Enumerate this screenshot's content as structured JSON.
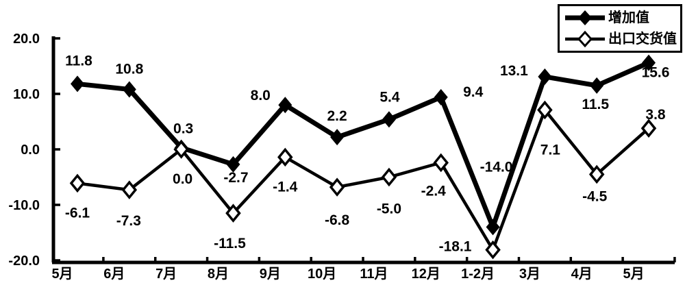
{
  "colors": {
    "foreground": "#000000",
    "background": "#ffffff"
  },
  "legend": {
    "items": [
      {
        "label": "增加值",
        "marker": "filled-diamond",
        "line": "thick"
      },
      {
        "label": "出口交货值",
        "marker": "hollow-diamond",
        "line": "thin"
      }
    ]
  },
  "chart_data": {
    "type": "line",
    "title": "",
    "xlabel": "",
    "ylabel": "",
    "grid": false,
    "legend_position": "top-right",
    "categories": [
      "5月",
      "6月",
      "7月",
      "8月",
      "9月",
      "10月",
      "11月",
      "12月",
      "1-2月",
      "3月",
      "4月",
      "5月"
    ],
    "ylim": [
      -20,
      20
    ],
    "yticks": [
      {
        "value": 20,
        "label": "20.0"
      },
      {
        "value": 10,
        "label": "10.0"
      },
      {
        "value": 0,
        "label": "0.0"
      },
      {
        "value": -10,
        "label": "-10.0"
      },
      {
        "value": -20,
        "label": "-20.0"
      }
    ],
    "series": [
      {
        "name": "增加值",
        "marker": "filled-diamond",
        "line_width": 7,
        "values": [
          11.8,
          10.8,
          0.3,
          -2.7,
          8.0,
          2.2,
          5.4,
          9.4,
          -14.0,
          13.1,
          11.5,
          15.6
        ],
        "labels": [
          "11.8",
          "10.8",
          "0.3",
          "-2.7",
          "8.0",
          "2.2",
          "5.4",
          "9.4",
          "-14.0",
          "13.1",
          "11.5",
          "15.6"
        ],
        "label_offsets": [
          [
            2,
            -34
          ],
          [
            0,
            -30
          ],
          [
            3,
            -28
          ],
          [
            4,
            19
          ],
          [
            -36,
            -14
          ],
          [
            0,
            -31
          ],
          [
            1,
            -33
          ],
          [
            47,
            -8
          ],
          [
            5,
            -88
          ],
          [
            -45,
            -9
          ],
          [
            -2,
            27
          ],
          [
            10,
            14
          ]
        ]
      },
      {
        "name": "出口交货值",
        "marker": "hollow-diamond",
        "line_width": 4.5,
        "values": [
          -6.1,
          -7.3,
          0.0,
          -11.5,
          -1.4,
          -6.8,
          -5.0,
          -2.4,
          -18.1,
          7.1,
          -4.5,
          3.8
        ],
        "labels": [
          "-6.1",
          "-7.3",
          "0.0",
          "-11.5",
          "-1.4",
          "-6.8",
          "-5.0",
          "-2.4",
          "-18.1",
          "7.1",
          "-4.5",
          "3.8"
        ],
        "label_offsets": [
          [
            0,
            43
          ],
          [
            -1,
            45
          ],
          [
            2,
            43
          ],
          [
            -5,
            44
          ],
          [
            0,
            43
          ],
          [
            0,
            48
          ],
          [
            0,
            46
          ],
          [
            -11,
            41
          ],
          [
            -55,
            -5
          ],
          [
            8,
            58
          ],
          [
            -3,
            32
          ],
          [
            10,
            -20
          ]
        ]
      }
    ]
  }
}
